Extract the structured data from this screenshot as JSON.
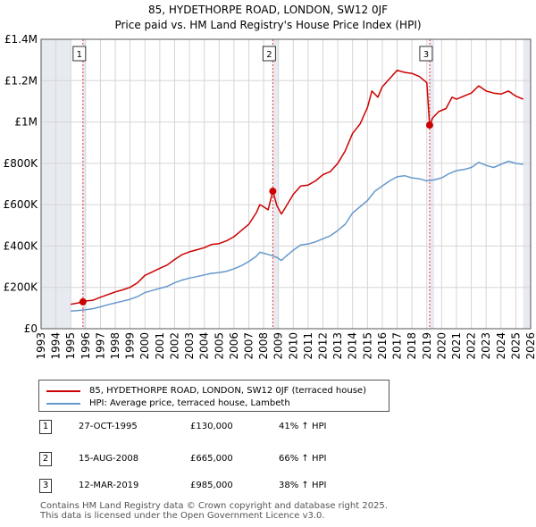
{
  "chart_data": {
    "type": "line",
    "title": "85, HYDETHORPE ROAD, LONDON, SW12 0JF",
    "subtitle": "Price paid vs. HM Land Registry's House Price Index (HPI)",
    "xlabel": "",
    "ylabel": "",
    "xlim": [
      1993,
      2026
    ],
    "ylim": [
      0,
      1400000
    ],
    "x_ticks": [
      1993,
      1994,
      1995,
      1996,
      1997,
      1998,
      1999,
      2000,
      2001,
      2002,
      2003,
      2004,
      2005,
      2006,
      2007,
      2008,
      2009,
      2010,
      2011,
      2012,
      2013,
      2014,
      2015,
      2016,
      2017,
      2018,
      2019,
      2020,
      2021,
      2022,
      2023,
      2024,
      2025,
      2026
    ],
    "y_ticks": [
      {
        "value": 0,
        "label": "£0"
      },
      {
        "value": 200000,
        "label": "£200K"
      },
      {
        "value": 400000,
        "label": "£400K"
      },
      {
        "value": 600000,
        "label": "£600K"
      },
      {
        "value": 800000,
        "label": "£800K"
      },
      {
        "value": 1000000,
        "label": "£1M"
      },
      {
        "value": 1200000,
        "label": "£1.2M"
      },
      {
        "value": 1400000,
        "label": "£1.4M"
      }
    ],
    "grid": true,
    "shaded_ranges": [
      [
        1993.0,
        1995.0
      ],
      [
        1995.82,
        1996.0
      ],
      [
        2008.62,
        2009.0
      ],
      [
        2019.19,
        2019.5
      ],
      [
        2025.5,
        2026.0
      ]
    ],
    "series": [
      {
        "name": "85, HYDETHORPE ROAD, LONDON, SW12 0JF (terraced house)",
        "color": "#cc0000",
        "points": [
          [
            1995.0,
            118000
          ],
          [
            1995.5,
            125000
          ],
          [
            1995.82,
            130000
          ],
          [
            1996.0,
            134000
          ],
          [
            1996.5,
            138000
          ],
          [
            1997.0,
            152000
          ],
          [
            1997.5,
            165000
          ],
          [
            1998.0,
            178000
          ],
          [
            1998.5,
            188000
          ],
          [
            1999.0,
            200000
          ],
          [
            1999.5,
            222000
          ],
          [
            2000.0,
            258000
          ],
          [
            2000.5,
            275000
          ],
          [
            2001.0,
            292000
          ],
          [
            2001.5,
            308000
          ],
          [
            2002.0,
            335000
          ],
          [
            2002.5,
            358000
          ],
          [
            2003.0,
            372000
          ],
          [
            2003.5,
            382000
          ],
          [
            2004.0,
            392000
          ],
          [
            2004.5,
            408000
          ],
          [
            2005.0,
            412000
          ],
          [
            2005.5,
            425000
          ],
          [
            2006.0,
            445000
          ],
          [
            2006.5,
            475000
          ],
          [
            2007.0,
            505000
          ],
          [
            2007.5,
            560000
          ],
          [
            2007.75,
            600000
          ],
          [
            2008.0,
            590000
          ],
          [
            2008.3,
            575000
          ],
          [
            2008.62,
            665000
          ],
          [
            2008.9,
            595000
          ],
          [
            2009.2,
            555000
          ],
          [
            2009.5,
            590000
          ],
          [
            2010.0,
            650000
          ],
          [
            2010.5,
            690000
          ],
          [
            2011.0,
            695000
          ],
          [
            2011.5,
            715000
          ],
          [
            2012.0,
            745000
          ],
          [
            2012.5,
            760000
          ],
          [
            2013.0,
            800000
          ],
          [
            2013.5,
            860000
          ],
          [
            2014.0,
            945000
          ],
          [
            2014.5,
            990000
          ],
          [
            2015.0,
            1070000
          ],
          [
            2015.3,
            1150000
          ],
          [
            2015.7,
            1120000
          ],
          [
            2016.0,
            1170000
          ],
          [
            2016.5,
            1210000
          ],
          [
            2017.0,
            1250000
          ],
          [
            2017.5,
            1240000
          ],
          [
            2018.0,
            1235000
          ],
          [
            2018.5,
            1220000
          ],
          [
            2019.0,
            1190000
          ],
          [
            2019.19,
            985000
          ],
          [
            2019.4,
            1020000
          ],
          [
            2019.8,
            1050000
          ],
          [
            2020.3,
            1065000
          ],
          [
            2020.7,
            1120000
          ],
          [
            2021.0,
            1110000
          ],
          [
            2021.5,
            1125000
          ],
          [
            2022.0,
            1140000
          ],
          [
            2022.5,
            1175000
          ],
          [
            2023.0,
            1150000
          ],
          [
            2023.5,
            1140000
          ],
          [
            2024.0,
            1135000
          ],
          [
            2024.5,
            1150000
          ],
          [
            2025.0,
            1125000
          ],
          [
            2025.5,
            1110000
          ]
        ]
      },
      {
        "name": "HPI: Average price, terraced house, Lambeth",
        "color": "#6699cc",
        "points": [
          [
            1995.0,
            85000
          ],
          [
            1995.5,
            88000
          ],
          [
            1996.0,
            92000
          ],
          [
            1996.5,
            97000
          ],
          [
            1997.0,
            106000
          ],
          [
            1997.5,
            116000
          ],
          [
            1998.0,
            125000
          ],
          [
            1998.5,
            133000
          ],
          [
            1999.0,
            142000
          ],
          [
            1999.5,
            155000
          ],
          [
            2000.0,
            175000
          ],
          [
            2000.5,
            185000
          ],
          [
            2001.0,
            195000
          ],
          [
            2001.5,
            205000
          ],
          [
            2002.0,
            222000
          ],
          [
            2002.5,
            235000
          ],
          [
            2003.0,
            245000
          ],
          [
            2003.5,
            252000
          ],
          [
            2004.0,
            260000
          ],
          [
            2004.5,
            268000
          ],
          [
            2005.0,
            272000
          ],
          [
            2005.5,
            278000
          ],
          [
            2006.0,
            290000
          ],
          [
            2006.5,
            305000
          ],
          [
            2007.0,
            325000
          ],
          [
            2007.5,
            350000
          ],
          [
            2007.75,
            370000
          ],
          [
            2008.0,
            365000
          ],
          [
            2008.5,
            355000
          ],
          [
            2008.9,
            345000
          ],
          [
            2009.2,
            330000
          ],
          [
            2009.5,
            350000
          ],
          [
            2010.0,
            380000
          ],
          [
            2010.5,
            405000
          ],
          [
            2011.0,
            410000
          ],
          [
            2011.5,
            420000
          ],
          [
            2012.0,
            435000
          ],
          [
            2012.5,
            450000
          ],
          [
            2013.0,
            475000
          ],
          [
            2013.5,
            505000
          ],
          [
            2014.0,
            560000
          ],
          [
            2014.5,
            590000
          ],
          [
            2015.0,
            620000
          ],
          [
            2015.5,
            665000
          ],
          [
            2016.0,
            690000
          ],
          [
            2016.5,
            715000
          ],
          [
            2017.0,
            735000
          ],
          [
            2017.5,
            740000
          ],
          [
            2018.0,
            730000
          ],
          [
            2018.5,
            725000
          ],
          [
            2019.0,
            715000
          ],
          [
            2019.5,
            720000
          ],
          [
            2020.0,
            730000
          ],
          [
            2020.5,
            750000
          ],
          [
            2021.0,
            765000
          ],
          [
            2021.5,
            770000
          ],
          [
            2022.0,
            780000
          ],
          [
            2022.5,
            805000
          ],
          [
            2023.0,
            790000
          ],
          [
            2023.5,
            780000
          ],
          [
            2024.0,
            795000
          ],
          [
            2024.5,
            810000
          ],
          [
            2025.0,
            800000
          ],
          [
            2025.5,
            795000
          ]
        ]
      }
    ],
    "sale_markers": [
      {
        "label": "1",
        "x": 1995.82,
        "y": 130000
      },
      {
        "label": "2",
        "x": 2008.62,
        "y": 665000
      },
      {
        "label": "3",
        "x": 2019.19,
        "y": 985000
      }
    ]
  },
  "legend": {
    "items": [
      {
        "label": "85, HYDETHORPE ROAD, LONDON, SW12 0JF (terraced house)",
        "color": "#cc0000"
      },
      {
        "label": "HPI: Average price, terraced house, Lambeth",
        "color": "#6699cc"
      }
    ]
  },
  "sales": [
    {
      "num": "1",
      "date": "27-OCT-1995",
      "price": "£130,000",
      "hpi": "41% ↑ HPI"
    },
    {
      "num": "2",
      "date": "15-AUG-2008",
      "price": "£665,000",
      "hpi": "66% ↑ HPI"
    },
    {
      "num": "3",
      "date": "12-MAR-2019",
      "price": "£985,000",
      "hpi": "38% ↑ HPI"
    }
  ],
  "footer": {
    "line1": "Contains HM Land Registry data © Crown copyright and database right 2025.",
    "line2": "This data is licensed under the Open Government Licence v3.0."
  }
}
